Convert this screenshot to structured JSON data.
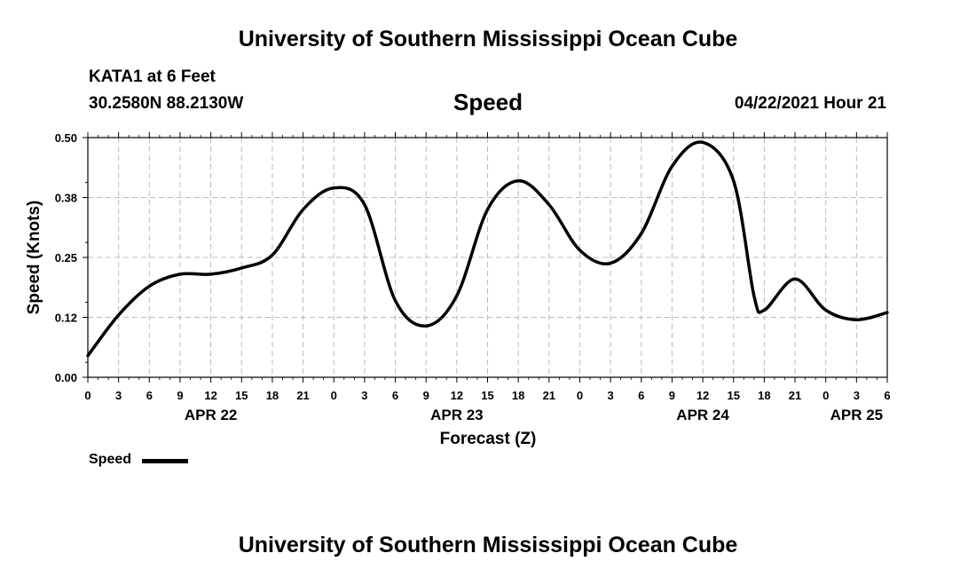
{
  "header": {
    "title_top": "University of Southern Mississippi Ocean Cube",
    "title_bottom": "University of Southern Mississippi Ocean Cube",
    "station": "KATA1 at 6 Feet",
    "coords": "30.2580N  88.2130W",
    "variable": "Speed",
    "issued": "04/22/2021 Hour 21"
  },
  "chart_data": {
    "type": "line",
    "xlabel": "Forecast (Z)",
    "ylabel": "Speed (Knots)",
    "ylim": [
      0.0,
      0.5
    ],
    "yticks": [
      "0.00",
      "0.12",
      "0.25",
      "0.38",
      "0.50"
    ],
    "xlim": [
      0,
      78
    ],
    "xtick_labels": [
      "0",
      "3",
      "6",
      "9",
      "12",
      "15",
      "18",
      "21",
      "0",
      "3",
      "6",
      "9",
      "12",
      "15",
      "18",
      "21",
      "0",
      "3",
      "6",
      "9",
      "12",
      "15",
      "18",
      "21",
      "0",
      "3",
      "6"
    ],
    "dates": [
      {
        "label": "APR 22",
        "hour": 12
      },
      {
        "label": "APR 23",
        "hour": 36
      },
      {
        "label": "APR 24",
        "hour": 60
      },
      {
        "label": "APR 25",
        "hour": 75
      }
    ],
    "grid": true,
    "legend": "bottom-left",
    "series": [
      {
        "name": "Speed",
        "color": "#000000",
        "x": [
          0,
          3,
          6,
          9,
          12,
          15,
          18,
          21,
          24,
          27,
          30,
          33,
          36,
          39,
          42,
          45,
          48,
          51,
          54,
          57,
          60,
          63,
          65,
          66,
          69,
          72,
          75,
          78
        ],
        "y": [
          0.045,
          0.13,
          0.19,
          0.215,
          0.215,
          0.228,
          0.255,
          0.35,
          0.395,
          0.36,
          0.16,
          0.107,
          0.17,
          0.35,
          0.41,
          0.36,
          0.265,
          0.238,
          0.3,
          0.44,
          0.49,
          0.41,
          0.17,
          0.14,
          0.205,
          0.14,
          0.12,
          0.135
        ]
      }
    ]
  }
}
